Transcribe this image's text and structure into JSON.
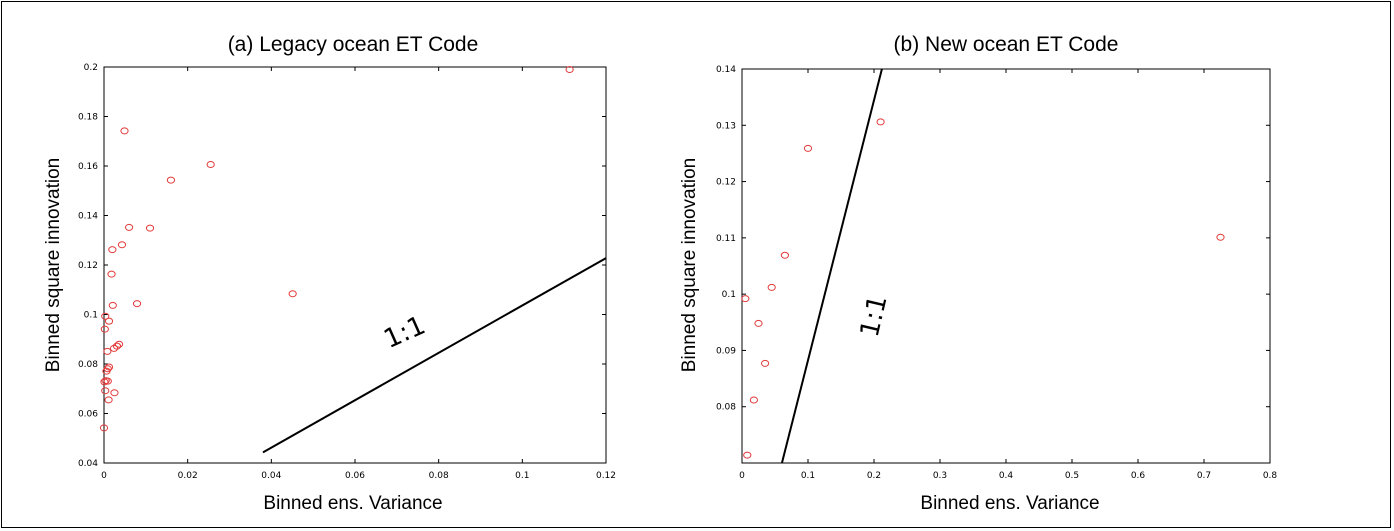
{
  "chart_data": [
    {
      "type": "scatter",
      "title": "(a) Legacy ocean ET Code",
      "xlabel": "Binned ens. Variance",
      "ylabel": "Binned square innovation",
      "xlim": [
        0,
        0.12
      ],
      "ylim": [
        0.04,
        0.2
      ],
      "xticks": [
        0,
        0.02,
        0.04,
        0.06,
        0.08,
        0.1,
        0.12
      ],
      "xtick_labels": [
        "0",
        "0.02",
        "0.04",
        "0.06",
        "0.08",
        "0.1",
        "0.12"
      ],
      "yticks": [
        0.04,
        0.06,
        0.08,
        0.1,
        0.12,
        0.14,
        0.16,
        0.18,
        0.2
      ],
      "ytick_labels": [
        "0.04",
        "0.06",
        "0.08",
        "0.1",
        "0.12",
        "0.14",
        "0.16",
        "0.18",
        "0.2"
      ],
      "grid": false,
      "marker_color": "#e23a3a",
      "points": [
        {
          "x": 0.1113,
          "y": 0.199
        },
        {
          "x": 0.0049,
          "y": 0.1742
        },
        {
          "x": 0.0255,
          "y": 0.1606
        },
        {
          "x": 0.016,
          "y": 0.1543
        },
        {
          "x": 0.006,
          "y": 0.1352
        },
        {
          "x": 0.011,
          "y": 0.1349
        },
        {
          "x": 0.0043,
          "y": 0.1282
        },
        {
          "x": 0.002,
          "y": 0.1262
        },
        {
          "x": 0.0018,
          "y": 0.1163
        },
        {
          "x": 0.0451,
          "y": 0.1084
        },
        {
          "x": 0.0079,
          "y": 0.1044
        },
        {
          "x": 0.0021,
          "y": 0.1037
        },
        {
          "x": 0.0003,
          "y": 0.0993
        },
        {
          "x": 0.0012,
          "y": 0.0973
        },
        {
          "x": 0.0002,
          "y": 0.0941
        },
        {
          "x": 0.0036,
          "y": 0.088
        },
        {
          "x": 0.0031,
          "y": 0.0872
        },
        {
          "x": 0.0024,
          "y": 0.0863
        },
        {
          "x": 0.0008,
          "y": 0.0851
        },
        {
          "x": 0.0012,
          "y": 0.0788
        },
        {
          "x": 0.0009,
          "y": 0.0781
        },
        {
          "x": 0.0006,
          "y": 0.0771
        },
        {
          "x": 0.0004,
          "y": 0.0733
        },
        {
          "x": 0.0009,
          "y": 0.0731
        },
        {
          "x": 0.0001,
          "y": 0.0728
        },
        {
          "x": 0.0003,
          "y": 0.0692
        },
        {
          "x": 0.0025,
          "y": 0.0684
        },
        {
          "x": 0.0011,
          "y": 0.0655
        },
        {
          "x": 0.0,
          "y": 0.0542
        }
      ],
      "reference_line": {
        "label": "1:1",
        "from": [
          0.038,
          0.0443
        ],
        "to": [
          0.12,
          0.1228
        ]
      }
    },
    {
      "type": "scatter",
      "title": "(b) New ocean ET Code",
      "xlabel": "Binned ens. Variance",
      "ylabel": "Binned square innovation",
      "xlim": [
        0,
        0.8
      ],
      "ylim": [
        0.07,
        0.14
      ],
      "xticks": [
        0,
        0.1,
        0.2,
        0.3,
        0.4,
        0.5,
        0.6,
        0.7,
        0.8
      ],
      "xtick_labels": [
        "0",
        "0.1",
        "0.2",
        "0.3",
        "0.4",
        "0.5",
        "0.6",
        "0.7",
        "0.8"
      ],
      "yticks": [
        0.08,
        0.09,
        0.1,
        0.11,
        0.12,
        0.13,
        0.14
      ],
      "ytick_labels": [
        "0.08",
        "0.09",
        "0.1",
        "0.11",
        "0.12",
        "0.13",
        "0.14"
      ],
      "grid": false,
      "marker_color": "#e23a3a",
      "points": [
        {
          "x": 0.21,
          "y": 0.1306
        },
        {
          "x": 0.1,
          "y": 0.1259
        },
        {
          "x": 0.725,
          "y": 0.1101
        },
        {
          "x": 0.065,
          "y": 0.1069
        },
        {
          "x": 0.045,
          "y": 0.1012
        },
        {
          "x": 0.005,
          "y": 0.0992
        },
        {
          "x": 0.025,
          "y": 0.0948
        },
        {
          "x": 0.035,
          "y": 0.0877
        },
        {
          "x": 0.018,
          "y": 0.0812
        },
        {
          "x": 0.008,
          "y": 0.0714
        }
      ],
      "reference_line": {
        "label": "1:1",
        "from": [
          0.0605,
          0.07
        ],
        "to": [
          0.212,
          0.14
        ]
      }
    }
  ]
}
